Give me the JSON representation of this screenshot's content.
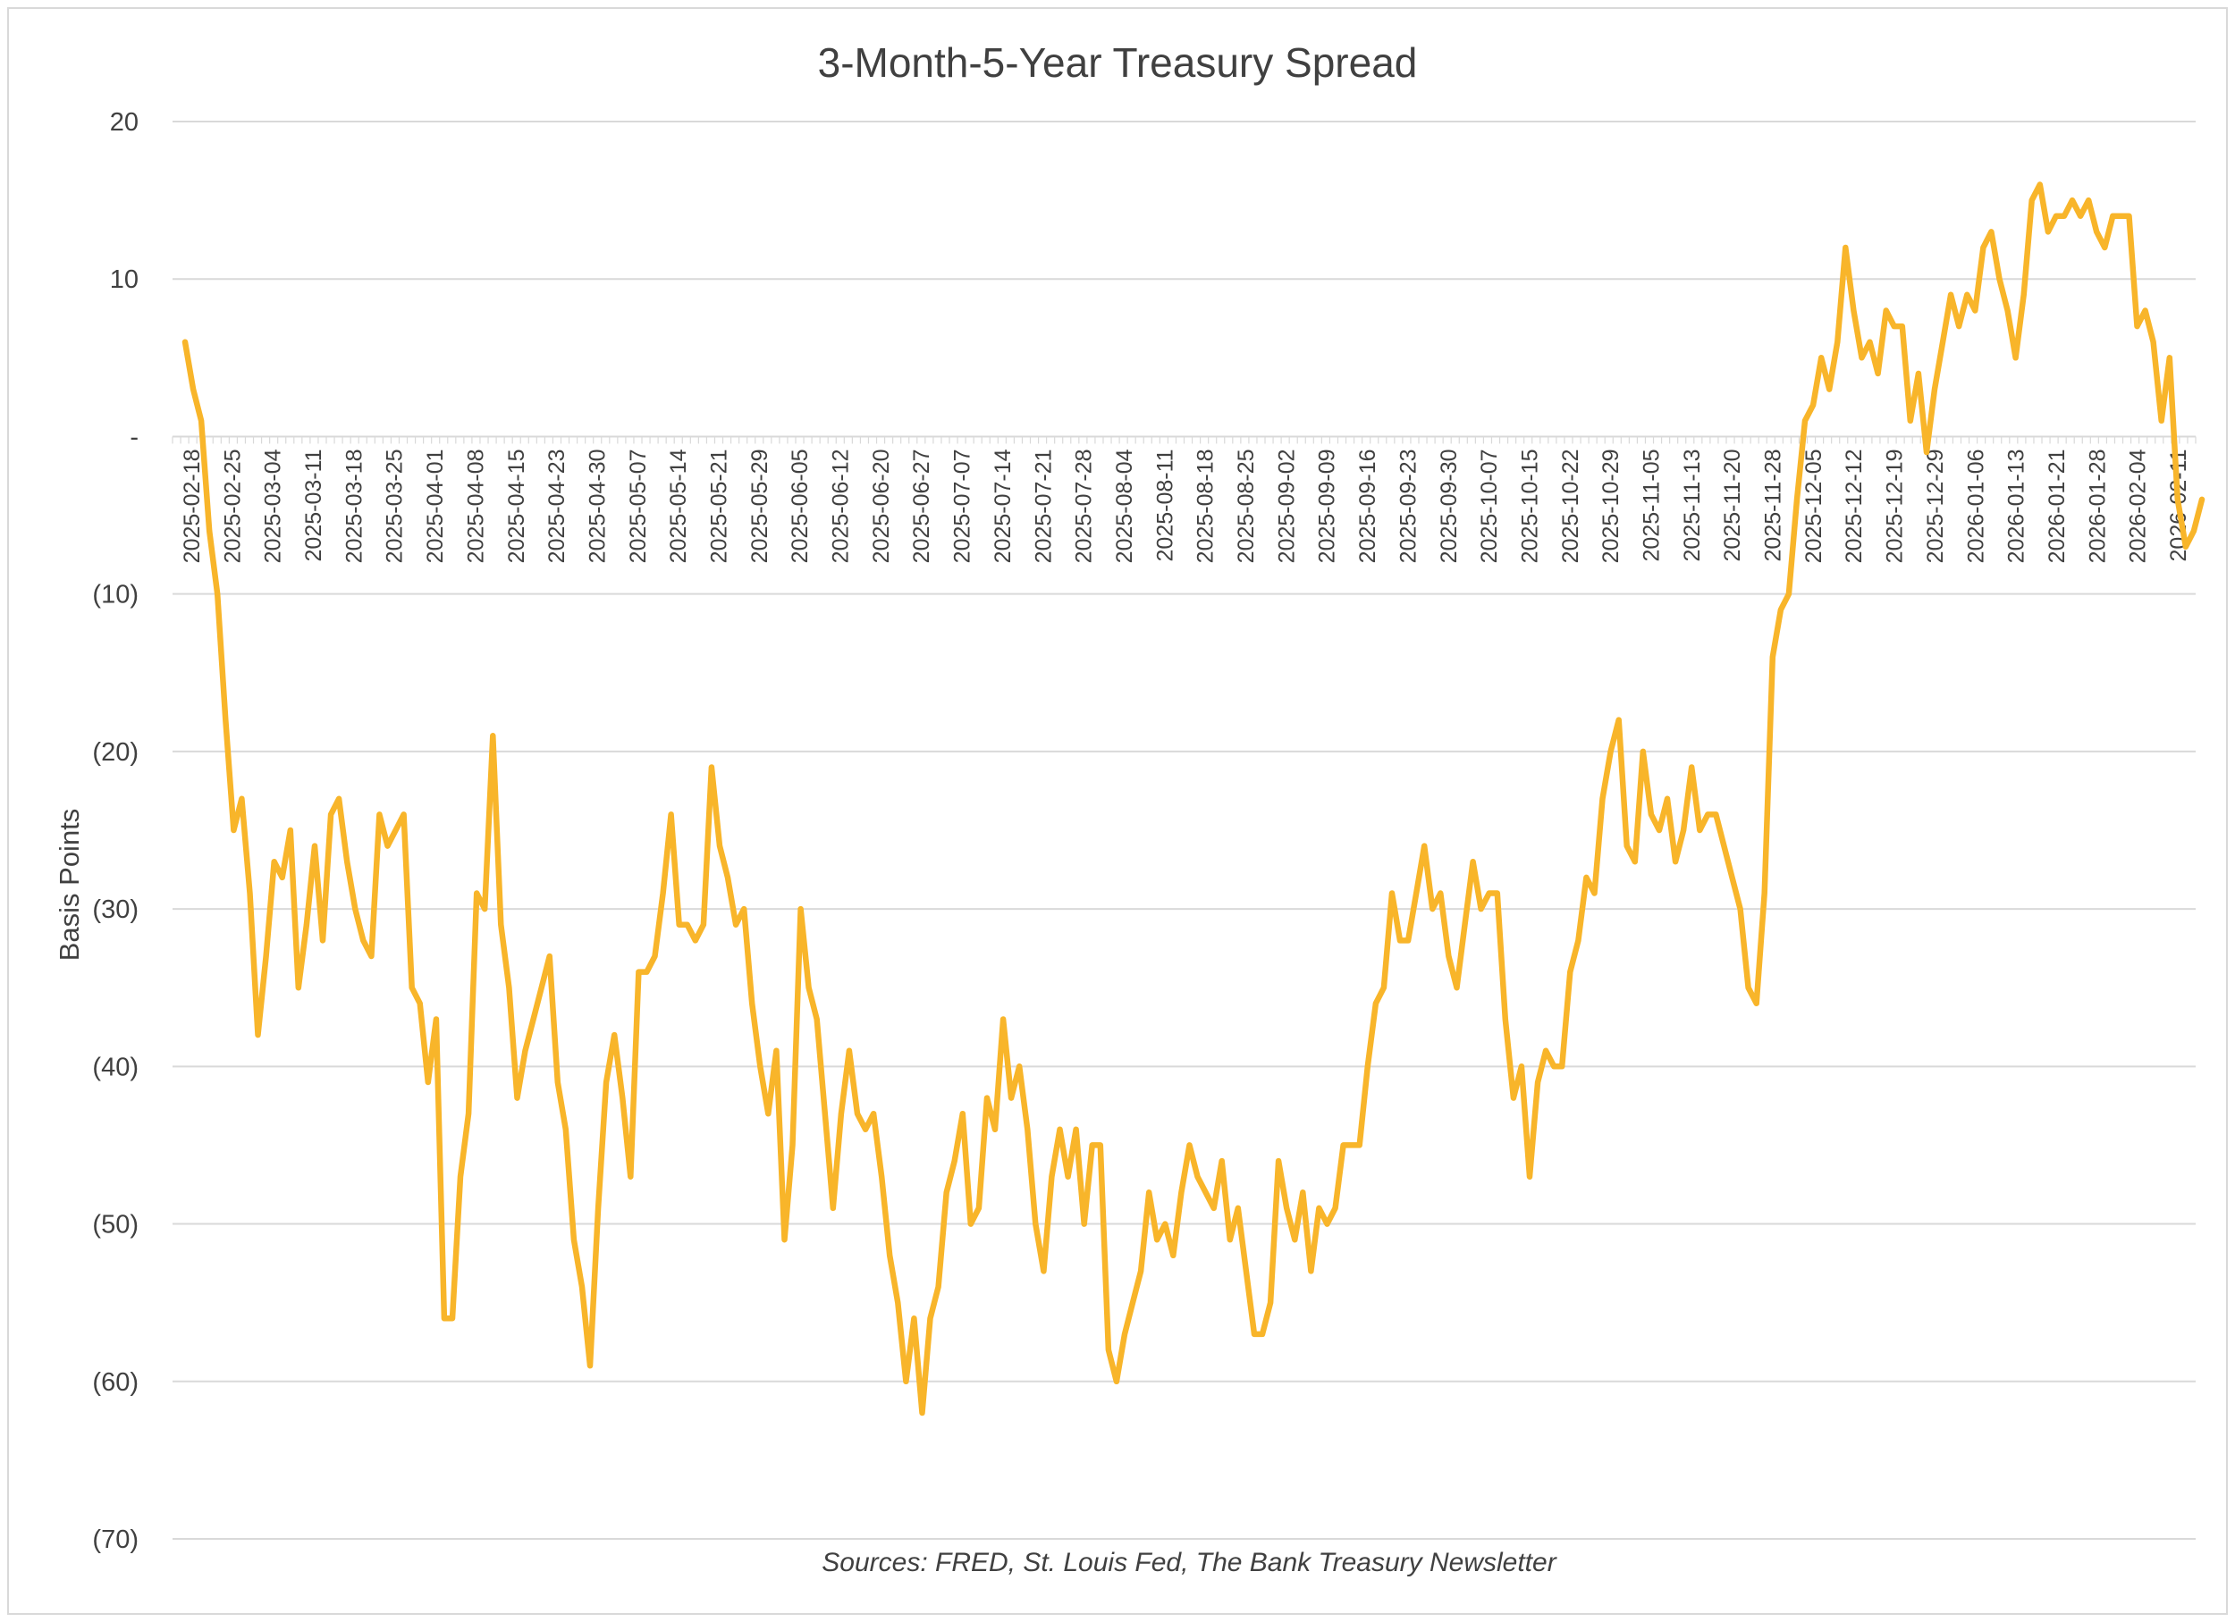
{
  "chart_data": {
    "type": "line",
    "title": "3-Month-5-Year Treasury Spread",
    "ylabel": "Basis Points",
    "xlabel": "",
    "source": "Sources: FRED, St. Louis Fed, The Bank Treasury Newsletter",
    "ylim": [
      -70,
      20
    ],
    "yticks": [
      {
        "value": 20,
        "label": "20"
      },
      {
        "value": 10,
        "label": "10"
      },
      {
        "value": 0,
        "label": "-"
      },
      {
        "value": -10,
        "label": "(10)"
      },
      {
        "value": -20,
        "label": "(20)"
      },
      {
        "value": -30,
        "label": "(30)"
      },
      {
        "value": -40,
        "label": "(40)"
      },
      {
        "value": -50,
        "label": "(50)"
      },
      {
        "value": -60,
        "label": "(60)"
      },
      {
        "value": -70,
        "label": "(70)"
      }
    ],
    "xticks": [
      "2025-02-18",
      "2025-02-25",
      "2025-03-04",
      "2025-03-11",
      "2025-03-18",
      "2025-03-25",
      "2025-04-01",
      "2025-04-08",
      "2025-04-15",
      "2025-04-23",
      "2025-04-30",
      "2025-05-07",
      "2025-05-14",
      "2025-05-21",
      "2025-05-29",
      "2025-06-05",
      "2025-06-12",
      "2025-06-20",
      "2025-06-27",
      "2025-07-07",
      "2025-07-14",
      "2025-07-21",
      "2025-07-28",
      "2025-08-04",
      "2025-08-11",
      "2025-08-18",
      "2025-08-25",
      "2025-09-02",
      "2025-09-09",
      "2025-09-16",
      "2025-09-23",
      "2025-09-30",
      "2025-10-07",
      "2025-10-15",
      "2025-10-22",
      "2025-10-29",
      "2025-11-05",
      "2025-11-13",
      "2025-11-20",
      "2025-11-28",
      "2025-12-05",
      "2025-12-12",
      "2025-12-19",
      "2025-12-29",
      "2026-01-06",
      "2026-01-13",
      "2026-01-21",
      "2026-01-28",
      "2026-02-04",
      "2026-02-11"
    ],
    "grid": true,
    "legend": "none",
    "line_color": "#f8b52a",
    "series": [
      {
        "values": [
          6,
          3,
          1,
          -6,
          -10,
          -18,
          -25,
          -23,
          -29,
          -38,
          -33,
          -27,
          -28,
          -25,
          -35,
          -31,
          -26,
          -32,
          -24,
          -23,
          -27,
          -30,
          -32,
          -33,
          -24,
          -26,
          -25,
          -24,
          -35,
          -36,
          -41,
          -37,
          -56,
          -56,
          -47,
          -43,
          -29,
          -30,
          -19,
          -31,
          -35,
          -42,
          -39,
          -37,
          -35,
          -33,
          -41,
          -44,
          -51,
          -54,
          -59,
          -49,
          -41,
          -38,
          -42,
          -47,
          -34,
          -34,
          -33,
          -29,
          -24,
          -31,
          -31,
          -32,
          -31,
          -21,
          -26,
          -28,
          -31,
          -30,
          -36,
          -40,
          -43,
          -39,
          -51,
          -45,
          -30,
          -35,
          -37,
          -43,
          -49,
          -43,
          -39,
          -43,
          -44,
          -43,
          -47,
          -52,
          -55,
          -60,
          -56,
          -62,
          -56,
          -54,
          -48,
          -46,
          -43,
          -50,
          -49,
          -42,
          -44,
          -37,
          -42,
          -40,
          -44,
          -50,
          -53,
          -47,
          -44,
          -47,
          -44,
          -50,
          -45,
          -45,
          -58,
          -60,
          -57,
          -55,
          -53,
          -48,
          -51,
          -50,
          -52,
          -48,
          -45,
          -47,
          -48,
          -49,
          -46,
          -51,
          -49,
          -53,
          -57,
          -57,
          -55,
          -46,
          -49,
          -51,
          -48,
          -53,
          -49,
          -50,
          -49,
          -45,
          -45,
          -45,
          -40,
          -36,
          -35,
          -29,
          -32,
          -32,
          -29,
          -26,
          -30,
          -29,
          -33,
          -35,
          -31,
          -27,
          -30,
          -29,
          -29,
          -37,
          -42,
          -40,
          -47,
          -41,
          -39,
          -40,
          -40,
          -34,
          -32,
          -28,
          -29,
          -23,
          -20,
          -18,
          -26,
          -27,
          -20,
          -24,
          -25,
          -23,
          -27,
          -25,
          -21,
          -25,
          -24,
          -24,
          -26,
          -28,
          -30,
          -35,
          -36,
          -29,
          -14,
          -11,
          -10,
          -4,
          1,
          2,
          5,
          3,
          6,
          12,
          8,
          5,
          6,
          4,
          8,
          7,
          7,
          1,
          4,
          -1,
          3,
          6,
          9,
          7,
          9,
          8,
          12,
          13,
          10,
          8,
          5,
          9,
          15,
          16,
          13,
          14,
          14,
          15,
          14,
          15,
          13,
          12,
          14,
          14,
          14,
          7,
          8,
          6,
          1,
          5,
          -4,
          -7,
          -6,
          -4
        ]
      }
    ]
  }
}
